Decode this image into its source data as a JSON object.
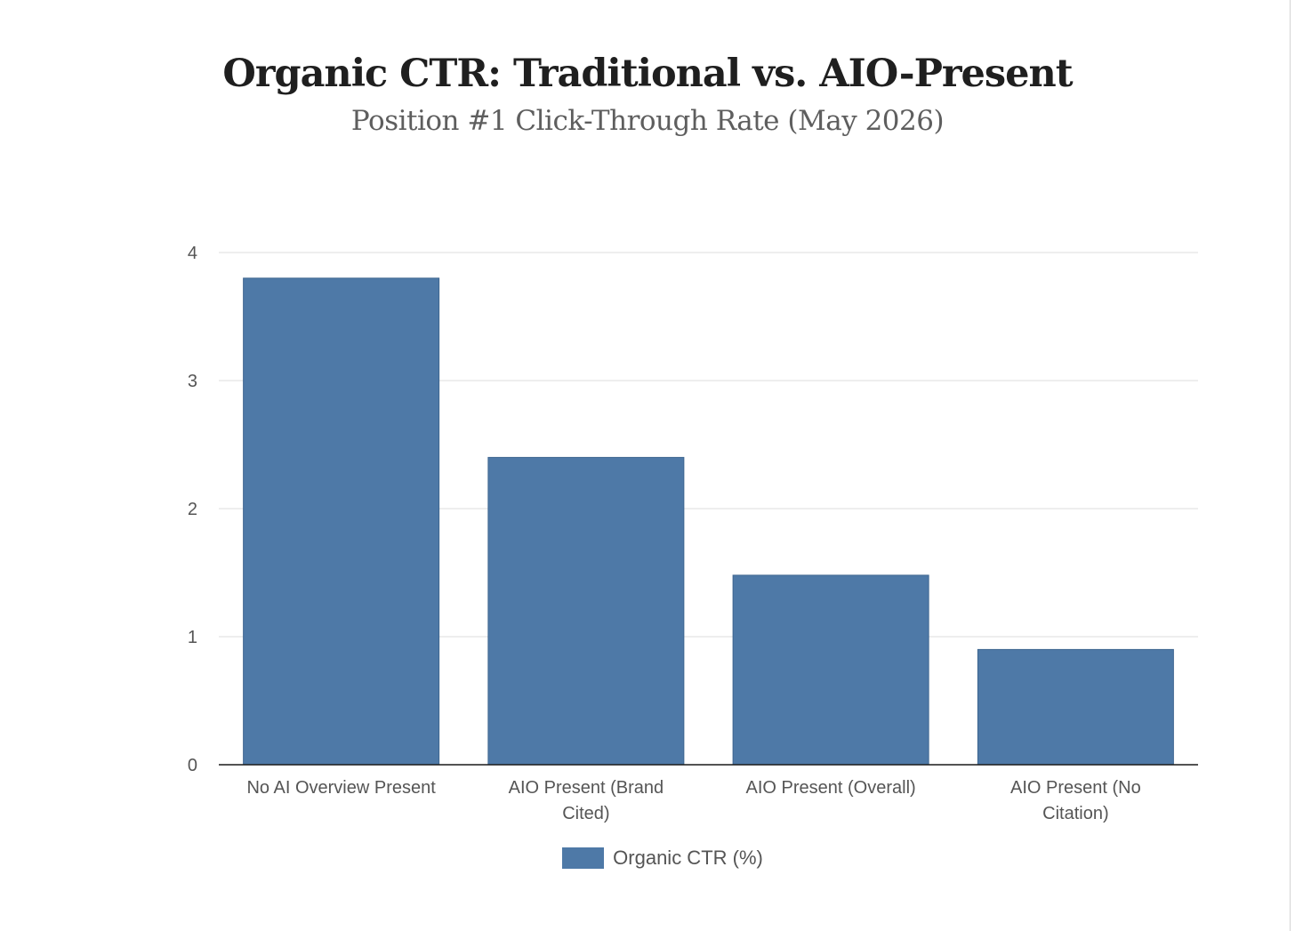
{
  "title": "Organic CTR: Traditional vs. AIO-Present",
  "subtitle": "Position #1 Click-Through Rate (May 2026)",
  "colors": {
    "bar": "#4e79a7",
    "grid": "#e3e3e3",
    "axis": "#1a1a1a"
  },
  "chart_data": {
    "type": "bar",
    "title": "Organic CTR: Traditional vs. AIO-Present",
    "subtitle": "Position #1 Click-Through Rate (May 2026)",
    "categories": [
      "No AI Overview Present",
      "AIO Present (Brand Cited)",
      "AIO Present (Overall)",
      "AIO Present (No Citation)"
    ],
    "category_label_lines": [
      [
        "No AI Overview Present"
      ],
      [
        "AIO Present (Brand",
        "Cited)"
      ],
      [
        "AIO Present (Overall)"
      ],
      [
        "AIO Present (No",
        "Citation)"
      ]
    ],
    "series": [
      {
        "name": "Organic CTR (%)",
        "values": [
          3.8,
          2.4,
          1.48,
          0.9
        ]
      }
    ],
    "xlabel": "",
    "ylabel": "",
    "ylim": [
      0,
      4
    ],
    "yticks": [
      0,
      1,
      2,
      3,
      4
    ],
    "grid": true,
    "legend": "bottom-center"
  }
}
